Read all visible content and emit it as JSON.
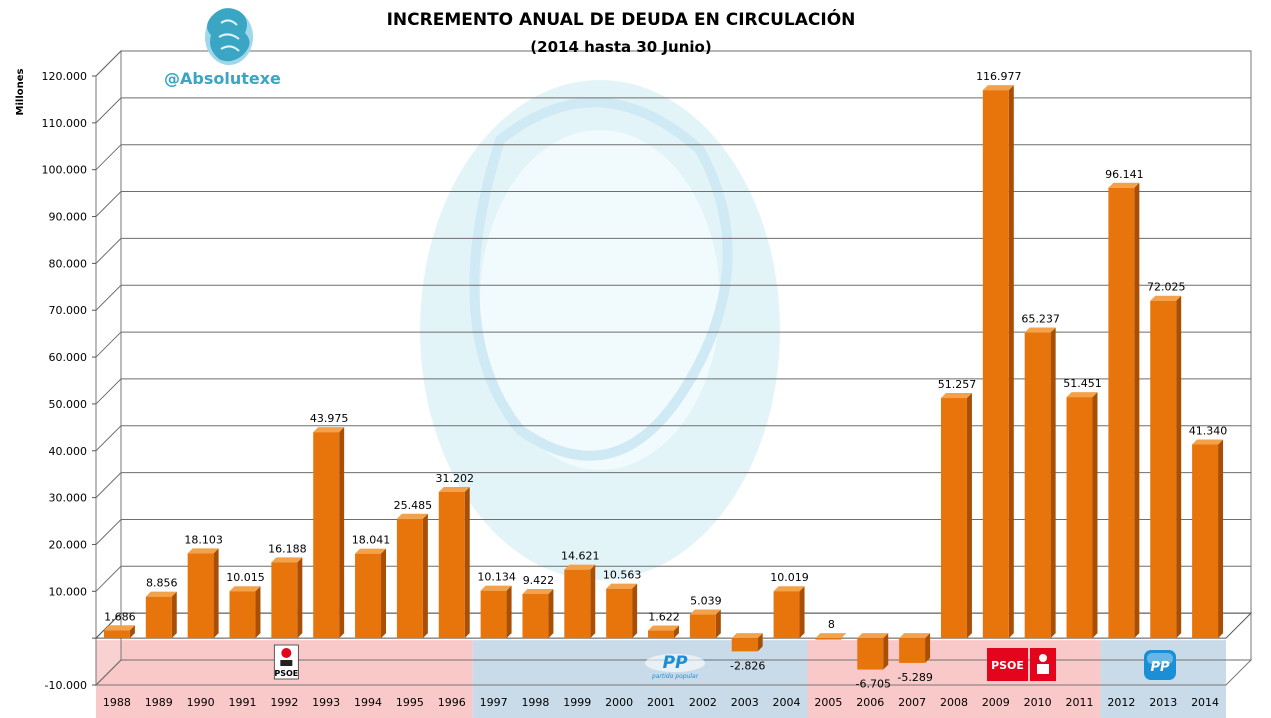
{
  "colors": {
    "bar_front": "#e8740c",
    "bar_side": "#a84f05",
    "bar_top": "#f4a24a",
    "band_red": "#f9c9c9",
    "band_blue": "#c9dbe9",
    "watermark": "#dcf1f8",
    "handle": "#3aa6c4",
    "psoe_red": "#e3051b",
    "pp_blue": "#1a8fd6"
  },
  "header": {
    "handle": "@Absolutexe",
    "logo_icon": "griffin-logo-icon"
  },
  "party_badges": [
    {
      "name": "psoe-small-logo-icon",
      "text": "PSOE"
    },
    {
      "name": "pp-logo-icon",
      "text": "PP",
      "subtext": "partido popular"
    },
    {
      "name": "psoe-logo-icon",
      "text": "PSOE"
    },
    {
      "name": "pp-square-logo-icon",
      "text": "PP"
    }
  ],
  "chart_data": {
    "type": "bar",
    "title": "INCREMENTO ANUAL DE DEUDA EN CIRCULACIÓN",
    "subtitle": "(2014 hasta  30 Junio)",
    "ylabel": "Millones",
    "xlabel": "",
    "ylim": [
      -10000,
      120000
    ],
    "yticks": [
      -10000,
      0,
      10000,
      20000,
      30000,
      40000,
      50000,
      60000,
      70000,
      80000,
      90000,
      100000,
      110000,
      120000
    ],
    "ytick_labels": [
      "-10.000",
      "",
      "10.000",
      "20.000",
      "30.000",
      "40.000",
      "50.000",
      "60.000",
      "70.000",
      "80.000",
      "90.000",
      "100.000",
      "110.000",
      "120.000"
    ],
    "grid": true,
    "categories": [
      "1988",
      "1989",
      "1990",
      "1991",
      "1992",
      "1993",
      "1994",
      "1995",
      "1996",
      "1997",
      "1998",
      "1999",
      "2000",
      "2001",
      "2002",
      "2003",
      "2004",
      "2005",
      "2006",
      "2007",
      "2008",
      "2009",
      "2010",
      "2011",
      "2012",
      "2013",
      "2014"
    ],
    "values": [
      1686,
      8856,
      18103,
      10015,
      16188,
      43975,
      18041,
      25485,
      31202,
      10134,
      9422,
      14621,
      10563,
      1622,
      5039,
      -2826,
      10019,
      8,
      -6705,
      -5289,
      51257,
      116977,
      65237,
      51451,
      96141,
      72025,
      41340
    ],
    "value_labels": [
      "1.686",
      "8.856",
      "18.103",
      "10.015",
      "16.188",
      "43.975",
      "18.041",
      "25.485",
      "31.202",
      "10.134",
      "9.422",
      "14.621",
      "10.563",
      "1.622",
      "5.039",
      "-2.826",
      "10.019",
      "8",
      "-6.705",
      "-5.289",
      "51.257",
      "116.977",
      "65.237",
      "51.451",
      "96.141",
      "72.025",
      "41.340"
    ],
    "bands": [
      {
        "from": "1988",
        "to": "1996",
        "color": "red",
        "party": "PSOE"
      },
      {
        "from": "1997",
        "to": "2004",
        "color": "blue",
        "party": "PP"
      },
      {
        "from": "2005",
        "to": "2011",
        "color": "red",
        "party": "PSOE"
      },
      {
        "from": "2012",
        "to": "2014",
        "color": "blue",
        "party": "PP"
      }
    ]
  }
}
